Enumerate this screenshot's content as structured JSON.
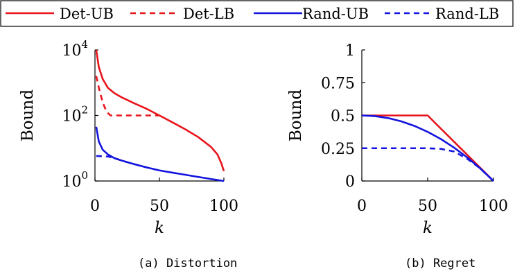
{
  "legend": [
    {
      "label": "Det-UB",
      "color": "#e8141c",
      "dash": "solid"
    },
    {
      "label": "Det-LB",
      "color": "#e8141c",
      "dash": "dashed"
    },
    {
      "label": "Rand-UB",
      "color": "#1414e0",
      "dash": "solid"
    },
    {
      "label": "Rand-LB",
      "color": "#1414e0",
      "dash": "dashed"
    }
  ],
  "chart_data": [
    {
      "type": "line",
      "caption": "(a) Distortion",
      "xlabel": "k",
      "ylabel": "Bound",
      "xlim": [
        0,
        100
      ],
      "ylim": [
        1,
        10000
      ],
      "yscale": "log",
      "xticks": [
        0,
        50,
        100
      ],
      "xtick_labels": [
        "0",
        "50",
        "100"
      ],
      "yticks": [
        1,
        100,
        10000
      ],
      "ytick_labels": [
        {
          "base": "10",
          "exp": "0"
        },
        {
          "base": "10",
          "exp": "2"
        },
        {
          "base": "10",
          "exp": "4"
        }
      ],
      "series": [
        {
          "name": "Det-UB",
          "color": "#e8141c",
          "dash": "solid",
          "x": [
            1,
            3,
            6,
            10,
            15,
            20,
            30,
            40,
            50,
            60,
            70,
            80,
            90,
            95,
            98,
            100
          ],
          "y": [
            10000,
            3000,
            1300,
            700,
            480,
            370,
            240,
            160,
            100,
            62,
            38,
            22,
            11,
            6.5,
            3.5,
            2
          ]
        },
        {
          "name": "Det-LB",
          "color": "#e8141c",
          "dash": "dashed",
          "x": [
            1,
            3,
            6,
            9,
            12,
            20,
            30,
            40,
            50
          ],
          "y": [
            1600,
            700,
            250,
            130,
            100,
            100,
            100,
            100,
            100
          ]
        },
        {
          "name": "Rand-UB",
          "color": "#1414e0",
          "dash": "solid",
          "x": [
            1,
            3,
            6,
            10,
            15,
            20,
            30,
            40,
            50,
            60,
            70,
            80,
            90,
            100
          ],
          "y": [
            45,
            16,
            9,
            6.5,
            5,
            4.3,
            3.3,
            2.6,
            2.1,
            1.8,
            1.55,
            1.33,
            1.15,
            1
          ]
        },
        {
          "name": "Rand-LB",
          "color": "#1414e0",
          "dash": "dashed",
          "x": [
            1,
            10,
            15,
            20,
            30,
            40,
            50
          ],
          "y": [
            5.8,
            5.6,
            5,
            4.3,
            3.3,
            2.6,
            2.1
          ]
        }
      ]
    },
    {
      "type": "line",
      "caption": "(b) Regret",
      "xlabel": "k",
      "ylabel": "Bound",
      "xlim": [
        0,
        100
      ],
      "ylim": [
        0,
        1
      ],
      "yscale": "linear",
      "xticks": [
        0,
        50,
        100
      ],
      "xtick_labels": [
        "0",
        "50",
        "100"
      ],
      "yticks": [
        0,
        0.25,
        0.5,
        0.75,
        1
      ],
      "ytick_labels": [
        "0",
        "0.25",
        "0.5",
        "0.75",
        "1"
      ],
      "series": [
        {
          "name": "Det-UB",
          "color": "#e8141c",
          "dash": "solid",
          "x": [
            0,
            50,
            100
          ],
          "y": [
            0.5,
            0.5,
            0
          ]
        },
        {
          "name": "Rand-UB",
          "color": "#1414e0",
          "dash": "solid",
          "x": [
            0,
            10,
            20,
            30,
            40,
            50,
            60,
            70,
            80,
            90,
            100
          ],
          "y": [
            0.5,
            0.495,
            0.48,
            0.455,
            0.42,
            0.375,
            0.32,
            0.255,
            0.18,
            0.095,
            0
          ]
        },
        {
          "name": "Rand-LB",
          "color": "#1414e0",
          "dash": "dashed",
          "x": [
            0,
            10,
            20,
            30,
            40,
            50,
            60,
            70,
            80,
            90,
            100
          ],
          "y": [
            0.25,
            0.25,
            0.25,
            0.25,
            0.25,
            0.25,
            0.245,
            0.225,
            0.17,
            0.095,
            0
          ]
        }
      ]
    }
  ]
}
